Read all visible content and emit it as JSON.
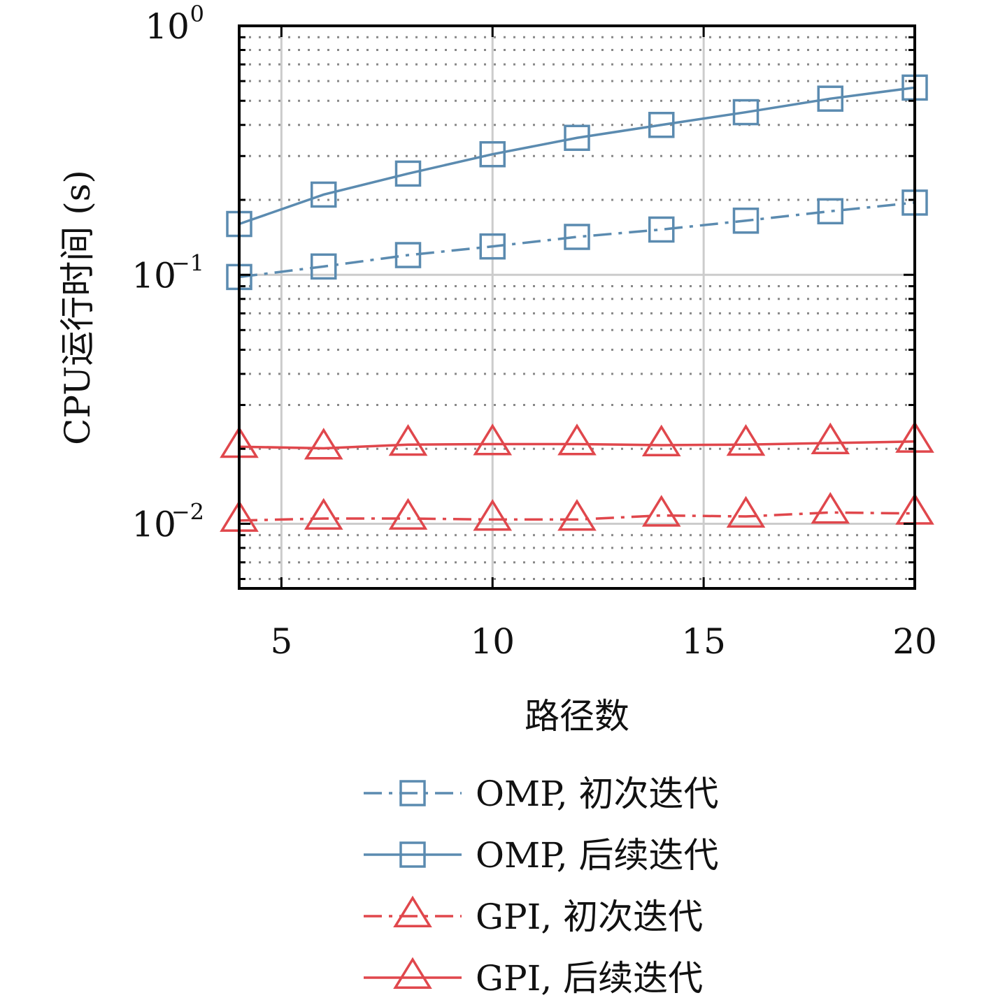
{
  "chart_data": {
    "type": "line",
    "title": "",
    "xlabel": "路径数",
    "ylabel": "CPU运行时间 (s)",
    "xlim": [
      4,
      20
    ],
    "ylim": [
      0.0055,
      1
    ],
    "yscale": "log",
    "x_ticks": [
      5,
      10,
      15,
      20
    ],
    "x_tick_labels": [
      "5",
      "10",
      "15",
      "20"
    ],
    "y_ticks": [
      {
        "value": 1,
        "base": "10",
        "exp": "0"
      },
      {
        "value": 0.1,
        "base": "10",
        "exp": "−1"
      },
      {
        "value": 0.01,
        "base": "10",
        "exp": "−2"
      }
    ],
    "grid": true,
    "legend_position": "below",
    "x": [
      4,
      6,
      8,
      10,
      12,
      14,
      16,
      18,
      20
    ],
    "series": [
      {
        "name": "OMP, 初次迭代",
        "color": "#5b8bb0",
        "linestyle": "dashdot",
        "marker": "square",
        "values": [
          0.098,
          0.108,
          0.12,
          0.13,
          0.142,
          0.152,
          0.165,
          0.18,
          0.195
        ]
      },
      {
        "name": "OMP, 后续迭代",
        "color": "#5b8bb0",
        "linestyle": "solid",
        "marker": "square",
        "values": [
          0.16,
          0.21,
          0.255,
          0.305,
          0.355,
          0.4,
          0.45,
          0.51,
          0.565
        ]
      },
      {
        "name": "GPI, 初次迭代",
        "color": "#e0474c",
        "linestyle": "dashdot",
        "marker": "triangle",
        "values": [
          0.0103,
          0.0105,
          0.0105,
          0.0104,
          0.0104,
          0.0108,
          0.0107,
          0.0111,
          0.011
        ]
      },
      {
        "name": "GPI, 后续迭代",
        "color": "#e0474c",
        "linestyle": "solid",
        "marker": "triangle",
        "values": [
          0.0204,
          0.0201,
          0.0208,
          0.0209,
          0.0209,
          0.0207,
          0.0208,
          0.0211,
          0.0214
        ]
      }
    ]
  }
}
